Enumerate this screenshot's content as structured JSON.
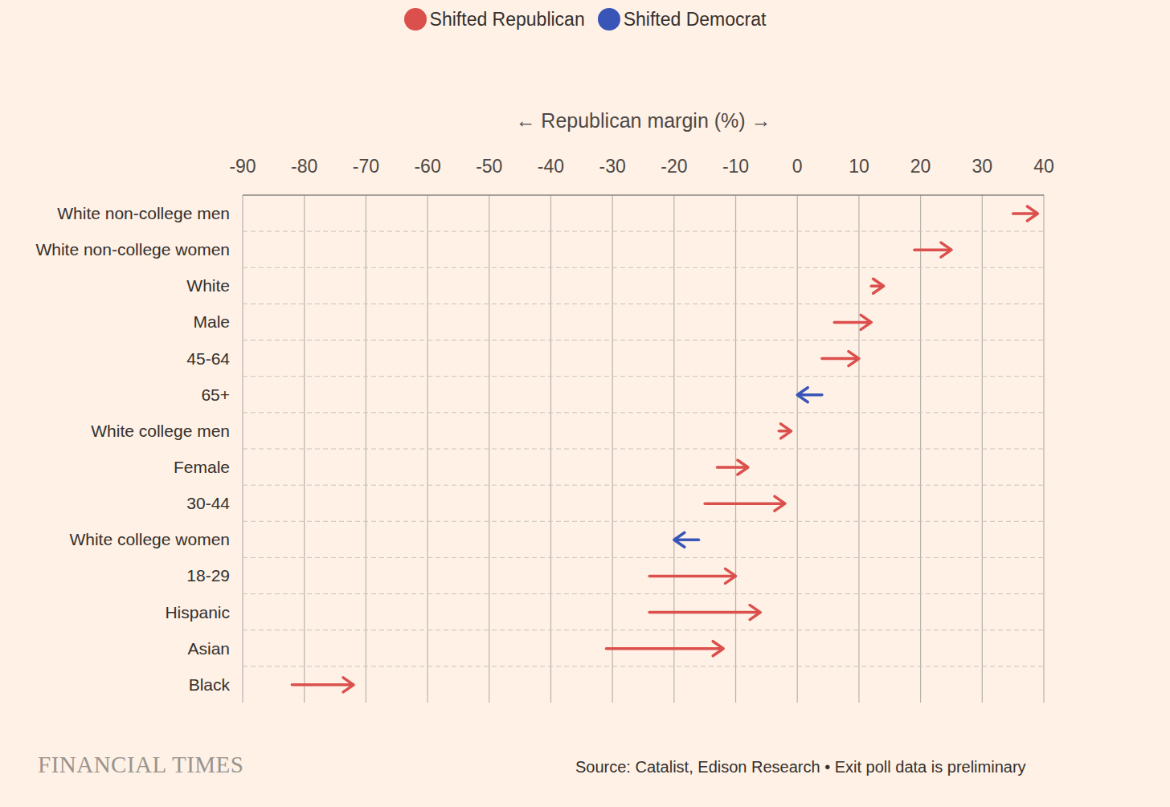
{
  "chart_data": {
    "type": "arrow",
    "orientation": "horizontal",
    "x_label": "← Republican margin (%) →",
    "categories": [
      "White non-college men",
      "White non-college women",
      "White",
      "Male",
      "45-64",
      "65+",
      "White college men",
      "Female",
      "30-44",
      "White college women",
      "18-29",
      "Hispanic",
      "Asian",
      "Black"
    ],
    "from": [
      35,
      19,
      12,
      6,
      4,
      4,
      -3,
      -13,
      -15,
      -16,
      -24,
      -24,
      -31,
      -82
    ],
    "to": [
      39,
      25,
      14,
      12,
      10,
      0,
      -1,
      -8,
      -2,
      -20,
      -10,
      -6,
      -12,
      -72
    ],
    "series": [
      {
        "name": "Shifted Republican",
        "color": "#db4f4c"
      },
      {
        "name": "Shifted Democrat",
        "color": "#3a55b8"
      }
    ],
    "legend": "top",
    "xlim": [
      -90,
      40
    ],
    "xticks": [
      -90,
      -80,
      -70,
      -60,
      -50,
      -40,
      -30,
      -20,
      -10,
      0,
      10,
      20,
      30,
      40
    ],
    "grid": true,
    "logo": "FINANCIAL TIMES",
    "source": "Source: Catalist, Edison Research • Exit poll data is preliminary"
  }
}
